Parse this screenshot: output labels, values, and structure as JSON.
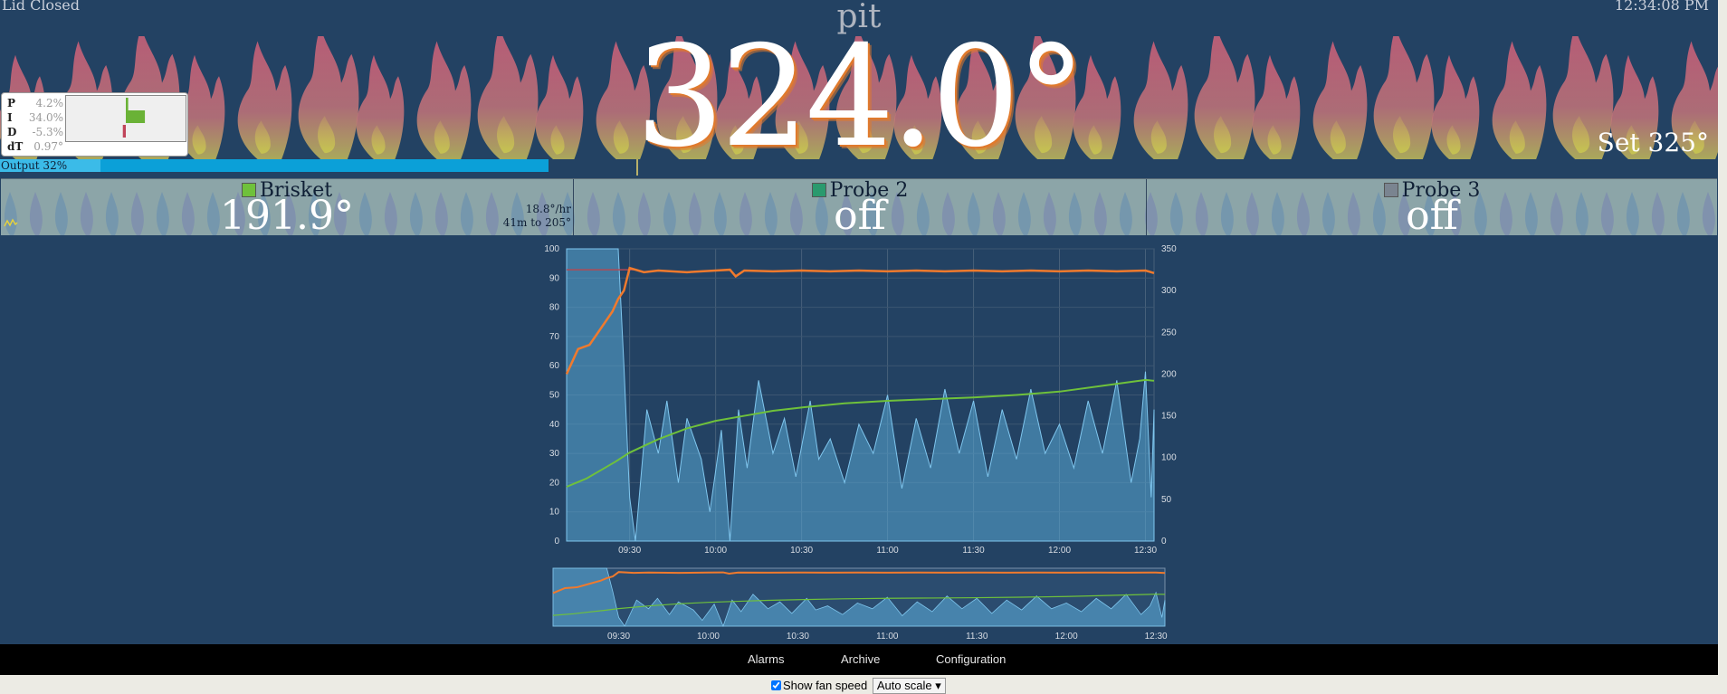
{
  "status": {
    "lid": "Lid Closed",
    "time": "12:34:08 PM"
  },
  "pit": {
    "title": "pit",
    "temp": "324.0°",
    "setpoint": "Set 325°"
  },
  "pid": {
    "rows": [
      {
        "label": "P",
        "value": "4.2%"
      },
      {
        "label": "I",
        "value": "34.0%"
      },
      {
        "label": "D",
        "value": "-5.3%"
      },
      {
        "label": "dT",
        "value": "0.97°"
      }
    ],
    "bars": {
      "p": 4.2,
      "i": 34.0,
      "d": -5.3
    },
    "colors": {
      "positive": "#6ab236",
      "negative": "#c0445a"
    }
  },
  "output": {
    "label": "Output 32%",
    "percent": 32
  },
  "probes": [
    {
      "name": "Brisket",
      "temp": "191.9°",
      "color": "#6fc13b",
      "rate": "18.8°/hr",
      "eta": "41m to 205°"
    },
    {
      "name": "Probe 2",
      "temp": "off",
      "color": "#2a9a6e",
      "rate": "",
      "eta": ""
    },
    {
      "name": "Probe 3",
      "temp": "off",
      "color": "#7a8490",
      "rate": "",
      "eta": ""
    }
  ],
  "colors": {
    "background": "#234263",
    "pit_line": "#f07a2d",
    "probe_line": "#6fc13b",
    "fan_fill": "#5aa9d6",
    "setpoint_line": "#b04a55"
  },
  "chart_data": [
    {
      "type": "line",
      "x_ticks": [
        "09:30",
        "10:00",
        "10:30",
        "11:00",
        "11:30",
        "12:00",
        "12:30"
      ],
      "y_left_ticks": [
        "0",
        "10",
        "20",
        "30",
        "40",
        "50",
        "60",
        "70",
        "80",
        "90",
        "100"
      ],
      "y_right_ticks": [
        "0",
        "50",
        "100",
        "150",
        "200",
        "250",
        "300",
        "350"
      ],
      "ylim_left": [
        0,
        100
      ],
      "ylim_right": [
        0,
        350
      ],
      "grid": true,
      "setpoint": 325,
      "series": [
        {
          "axis": "right",
          "x": [
            "09:08",
            "09:12",
            "09:16",
            "09:20",
            "09:24",
            "09:26",
            "09:28",
            "09:30",
            "09:35",
            "09:40",
            "09:50",
            "10:00",
            "10:05",
            "10:07",
            "10:10",
            "10:20",
            "10:30",
            "10:40",
            "10:50",
            "11:00",
            "11:10",
            "11:20",
            "11:30",
            "11:40",
            "11:50",
            "12:00",
            "12:10",
            "12:20",
            "12:30",
            "12:33"
          ],
          "values": [
            200,
            230,
            235,
            255,
            275,
            290,
            300,
            327,
            322,
            324,
            322,
            324,
            325,
            317,
            324,
            323,
            324,
            323,
            324,
            323,
            324,
            323,
            324,
            323,
            324,
            323,
            324,
            323,
            324,
            321
          ]
        },
        {
          "axis": "right",
          "x": [
            "09:08",
            "09:15",
            "09:20",
            "09:25",
            "09:30",
            "09:40",
            "09:50",
            "10:00",
            "10:10",
            "10:20",
            "10:30",
            "10:45",
            "11:00",
            "11:15",
            "11:30",
            "11:45",
            "12:00",
            "12:15",
            "12:30",
            "12:33"
          ],
          "values": [
            65,
            75,
            85,
            95,
            106,
            122,
            135,
            144,
            150,
            156,
            160,
            165,
            168,
            170,
            172,
            175,
            179,
            186,
            193,
            192
          ]
        },
        {
          "axis": "left",
          "x": [
            "09:08",
            "09:20",
            "09:26",
            "09:28",
            "09:30",
            "09:32",
            "09:36",
            "09:40",
            "09:43",
            "09:47",
            "09:50",
            "09:55",
            "09:58",
            "10:02",
            "10:05",
            "10:08",
            "10:11",
            "10:15",
            "10:20",
            "10:24",
            "10:28",
            "10:33",
            "10:36",
            "10:40",
            "10:45",
            "10:50",
            "10:55",
            "11:00",
            "11:05",
            "11:10",
            "11:15",
            "11:20",
            "11:25",
            "11:30",
            "11:35",
            "11:40",
            "11:45",
            "11:50",
            "11:55",
            "12:00",
            "12:05",
            "12:10",
            "12:15",
            "12:20",
            "12:25",
            "12:28",
            "12:30",
            "12:32",
            "12:33"
          ],
          "values": [
            100,
            100,
            100,
            60,
            15,
            0,
            45,
            30,
            48,
            20,
            42,
            28,
            10,
            38,
            0,
            45,
            25,
            55,
            30,
            42,
            22,
            48,
            28,
            35,
            20,
            40,
            30,
            50,
            18,
            42,
            25,
            52,
            30,
            48,
            22,
            45,
            28,
            52,
            30,
            40,
            25,
            48,
            30,
            55,
            20,
            35,
            58,
            15,
            45
          ]
        }
      ]
    },
    {
      "type": "area",
      "x_ticks": [
        "09:30",
        "10:00",
        "10:30",
        "11:00",
        "11:30",
        "12:00",
        "12:30"
      ]
    }
  ],
  "nav": {
    "alarms": "Alarms",
    "archive": "Archive",
    "configuration": "Configuration"
  },
  "controls": {
    "show_fan_label": "Show fan speed",
    "scale_value": "Auto scale"
  }
}
